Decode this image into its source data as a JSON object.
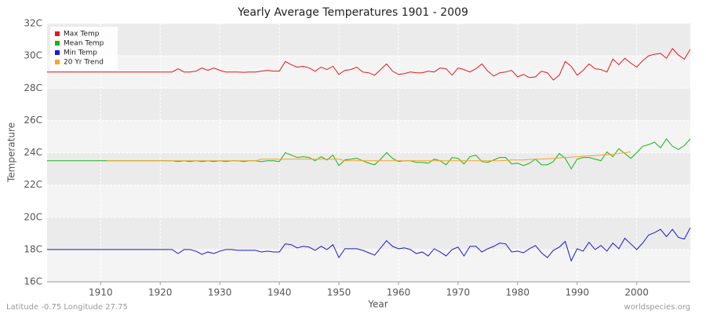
{
  "chart_data": {
    "type": "line",
    "title": "Yearly Average Temperatures 1901 - 2009",
    "x_label": "Year",
    "y_label": "Temperature",
    "footer_left": "Latitude -0.75 Longitude 27.75",
    "footer_right": "worldspecies.org",
    "legend": "top-left",
    "grid": true,
    "xlim": [
      1901,
      2009
    ],
    "xticks": [
      1910,
      1920,
      1930,
      1940,
      1950,
      1960,
      1970,
      1980,
      1990,
      2000
    ],
    "ylim": [
      16,
      32
    ],
    "yticks": [
      {
        "value": 16,
        "label": "16C"
      },
      {
        "value": 18,
        "label": "18C"
      },
      {
        "value": 20,
        "label": "20C"
      },
      {
        "value": 22,
        "label": "22C"
      },
      {
        "value": 24,
        "label": "24C"
      },
      {
        "value": 26,
        "label": "26C"
      },
      {
        "value": 28,
        "label": "28C"
      },
      {
        "value": 30,
        "label": "30C"
      },
      {
        "value": 32,
        "label": "32C"
      }
    ],
    "x": [
      1901,
      1902,
      1903,
      1904,
      1905,
      1906,
      1907,
      1908,
      1909,
      1910,
      1911,
      1912,
      1913,
      1914,
      1915,
      1916,
      1917,
      1918,
      1919,
      1920,
      1921,
      1922,
      1923,
      1924,
      1925,
      1926,
      1927,
      1928,
      1929,
      1930,
      1931,
      1932,
      1933,
      1934,
      1935,
      1936,
      1937,
      1938,
      1939,
      1940,
      1941,
      1942,
      1943,
      1944,
      1945,
      1946,
      1947,
      1948,
      1949,
      1950,
      1951,
      1952,
      1953,
      1954,
      1955,
      1956,
      1957,
      1958,
      1959,
      1960,
      1961,
      1962,
      1963,
      1964,
      1965,
      1966,
      1967,
      1968,
      1969,
      1970,
      1971,
      1972,
      1973,
      1974,
      1975,
      1976,
      1977,
      1978,
      1979,
      1980,
      1981,
      1982,
      1983,
      1984,
      1985,
      1986,
      1987,
      1988,
      1989,
      1990,
      1991,
      1992,
      1993,
      1994,
      1995,
      1996,
      1997,
      1998,
      1999,
      2000,
      2001,
      2002,
      2003,
      2004,
      2005,
      2006,
      2007,
      2008,
      2009
    ],
    "series": [
      {
        "name": "Max Temp",
        "color": "#e8161c",
        "values": [
          29,
          29,
          29,
          29,
          29,
          29,
          29,
          29,
          29,
          29,
          29,
          29,
          29,
          29,
          29,
          29,
          29,
          29,
          29,
          29,
          29,
          29,
          29.2,
          29.0,
          29.0,
          29.05,
          29.25,
          29.1,
          29.25,
          29.1,
          29.0,
          29.0,
          29.0,
          28.98,
          29.0,
          29.0,
          29.05,
          29.1,
          29.05,
          29.05,
          29.65,
          29.45,
          29.3,
          29.35,
          29.25,
          29.05,
          29.3,
          29.15,
          29.35,
          28.85,
          29.1,
          29.15,
          29.3,
          29.0,
          28.95,
          28.8,
          29.15,
          29.5,
          29.05,
          28.85,
          28.9,
          29.0,
          28.95,
          28.95,
          29.05,
          29.0,
          29.25,
          29.2,
          28.8,
          29.25,
          29.15,
          29.0,
          29.2,
          29.5,
          29.05,
          28.75,
          28.95,
          29.0,
          29.1,
          28.7,
          28.85,
          28.65,
          28.7,
          29.05,
          28.95,
          28.5,
          28.8,
          29.65,
          29.35,
          28.8,
          29.1,
          29.5,
          29.2,
          29.15,
          29.0,
          29.8,
          29.45,
          29.85,
          29.55,
          29.3,
          29.7,
          30.0,
          30.1,
          30.15,
          29.85,
          30.45,
          30.05,
          29.8,
          30.4
        ]
      },
      {
        "name": "Mean Temp",
        "color": "#1ab21a",
        "values": [
          23.5,
          23.5,
          23.5,
          23.5,
          23.5,
          23.5,
          23.5,
          23.5,
          23.5,
          23.5,
          23.5,
          23.5,
          23.5,
          23.5,
          23.5,
          23.5,
          23.5,
          23.5,
          23.5,
          23.5,
          23.5,
          23.5,
          23.45,
          23.5,
          23.45,
          23.5,
          23.45,
          23.5,
          23.45,
          23.5,
          23.45,
          23.5,
          23.5,
          23.45,
          23.5,
          23.5,
          23.45,
          23.5,
          23.5,
          23.45,
          24.0,
          23.85,
          23.7,
          23.75,
          23.7,
          23.5,
          23.75,
          23.55,
          23.85,
          23.2,
          23.55,
          23.6,
          23.65,
          23.5,
          23.35,
          23.25,
          23.6,
          24.0,
          23.65,
          23.45,
          23.5,
          23.5,
          23.4,
          23.4,
          23.35,
          23.6,
          23.5,
          23.25,
          23.7,
          23.65,
          23.3,
          23.75,
          23.85,
          23.45,
          23.4,
          23.55,
          23.7,
          23.7,
          23.3,
          23.35,
          23.2,
          23.35,
          23.6,
          23.25,
          23.25,
          23.45,
          23.95,
          23.65,
          23.0,
          23.6,
          23.7,
          23.7,
          23.6,
          23.5,
          24.05,
          23.75,
          24.25,
          23.95,
          23.65,
          24.0,
          24.4,
          24.5,
          24.65,
          24.3,
          24.85,
          24.4,
          24.2,
          24.45,
          24.85
        ]
      },
      {
        "name": "Min Temp",
        "color": "#1a1ad6",
        "values": [
          18,
          18,
          18,
          18,
          18,
          18,
          18,
          18,
          18,
          18,
          18,
          18,
          18,
          18,
          18,
          18,
          18,
          18,
          18,
          18,
          18,
          18,
          17.75,
          18.0,
          18.0,
          17.9,
          17.7,
          17.85,
          17.75,
          17.9,
          18.0,
          18.0,
          17.95,
          17.95,
          17.95,
          17.95,
          17.85,
          17.9,
          17.85,
          17.85,
          18.35,
          18.3,
          18.1,
          18.2,
          18.15,
          17.95,
          18.2,
          18.0,
          18.3,
          17.5,
          18.05,
          18.05,
          18.05,
          17.95,
          17.8,
          17.65,
          18.1,
          18.55,
          18.2,
          18.05,
          18.1,
          18.0,
          17.75,
          17.85,
          17.6,
          18.05,
          17.85,
          17.6,
          18.0,
          18.15,
          17.6,
          18.2,
          18.2,
          17.85,
          18.05,
          18.2,
          18.4,
          18.35,
          17.85,
          17.9,
          17.8,
          18.05,
          18.25,
          17.8,
          17.5,
          17.95,
          18.15,
          18.5,
          17.3,
          18.05,
          17.9,
          18.45,
          18.0,
          18.25,
          17.9,
          18.4,
          18.05,
          18.7,
          18.35,
          18.0,
          18.4,
          18.9,
          19.05,
          19.25,
          18.8,
          19.25,
          18.75,
          18.65,
          19.35
        ]
      },
      {
        "name": "20 Yr Trend",
        "color": "#f5a623",
        "values": [
          null,
          null,
          null,
          null,
          null,
          null,
          null,
          null,
          null,
          null,
          23.5,
          23.5,
          23.5,
          23.5,
          23.5,
          23.5,
          23.5,
          23.5,
          23.5,
          23.5,
          23.5,
          23.5,
          23.5,
          23.5,
          23.5,
          23.5,
          23.5,
          23.5,
          23.5,
          23.5,
          23.5,
          23.5,
          23.5,
          23.5,
          23.5,
          23.5,
          23.6,
          23.6,
          23.6,
          23.6,
          23.6,
          23.6,
          23.6,
          23.6,
          23.6,
          23.6,
          23.6,
          23.6,
          23.6,
          23.6,
          23.5,
          23.5,
          23.5,
          23.5,
          23.5,
          23.5,
          23.5,
          23.5,
          23.5,
          23.5,
          23.5,
          23.5,
          23.5,
          23.5,
          23.5,
          23.5,
          23.5,
          23.5,
          23.5,
          23.5,
          23.5,
          23.5,
          23.5,
          23.5,
          23.5,
          23.5,
          23.5,
          23.52,
          23.55,
          23.55,
          23.55,
          23.58,
          23.6,
          23.6,
          23.62,
          23.65,
          23.68,
          23.7,
          23.72,
          23.75,
          23.78,
          23.8,
          23.82,
          23.85,
          23.88,
          23.9,
          23.95,
          24.0,
          24.05,
          null,
          null,
          null,
          null,
          null,
          null,
          null,
          null,
          null,
          null
        ]
      }
    ]
  }
}
